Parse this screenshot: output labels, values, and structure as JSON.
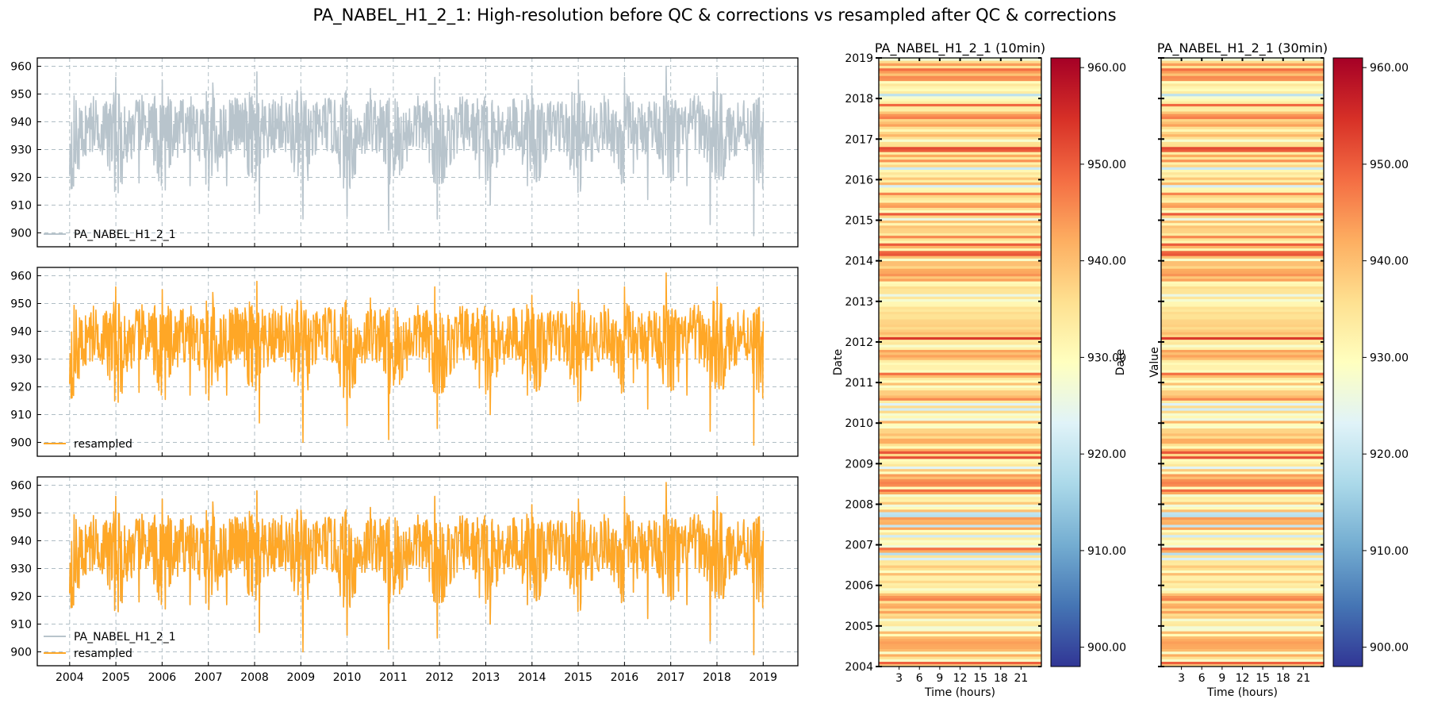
{
  "figure_title": "PA_NABEL_H1_2_1: High-resolution before QC & corrections vs resampled after QC & corrections",
  "colors": {
    "raw": "#b8c4cc",
    "resampled": "#ffa726",
    "grid": "#b0bec5",
    "colormap": [
      "#313695",
      "#4575b4",
      "#74add1",
      "#abd9e9",
      "#e0f3f8",
      "#ffffbf",
      "#fee090",
      "#fdae61",
      "#f46d43",
      "#d73027",
      "#a50026"
    ]
  },
  "chart_data": [
    {
      "type": "line",
      "panel": "raw",
      "x_ticks": [
        "2004",
        "2005",
        "2006",
        "2007",
        "2008",
        "2009",
        "2010",
        "2011",
        "2012",
        "2013",
        "2014",
        "2015",
        "2016",
        "2017",
        "2018",
        "2019"
      ],
      "xlim": [
        2003.3,
        2019.75
      ],
      "ylim": [
        895,
        963
      ],
      "y_ticks": [
        900,
        910,
        920,
        930,
        940,
        950,
        960
      ],
      "grid": true,
      "legend_position": "lower-left",
      "series": [
        {
          "name": "PA_NABEL_H1_2_1",
          "color": "#b8c4cc",
          "x_range": [
            2004.0,
            2019.0
          ],
          "typical_min": 925,
          "typical_max": 947,
          "mean": 936,
          "notable_lows": [
            [
              2004.05,
              916
            ],
            [
              2005.5,
              918
            ],
            [
              2006.6,
              917
            ],
            [
              2007.4,
              917
            ],
            [
              2008.1,
              907
            ],
            [
              2009.05,
              905
            ],
            [
              2010.0,
              906
            ],
            [
              2010.9,
              901
            ],
            [
              2011.95,
              905
            ],
            [
              2013.1,
              910
            ],
            [
              2015.0,
              898
            ],
            [
              2016.5,
              912
            ],
            [
              2017.35,
              917
            ],
            [
              2017.85,
              903
            ],
            [
              2018.8,
              899
            ]
          ],
          "notable_highs": [
            [
              2005.0,
              956
            ],
            [
              2006.0,
              955
            ],
            [
              2007.1,
              954
            ],
            [
              2008.05,
              958
            ],
            [
              2009.0,
              951
            ],
            [
              2010.5,
              952
            ],
            [
              2011.9,
              956
            ],
            [
              2014.0,
              953
            ],
            [
              2015.0,
              955
            ],
            [
              2016.0,
              956
            ],
            [
              2016.9,
              960
            ],
            [
              2018.0,
              956
            ]
          ]
        }
      ]
    },
    {
      "type": "line",
      "panel": "resampled",
      "x_ticks": [
        "2004",
        "2005",
        "2006",
        "2007",
        "2008",
        "2009",
        "2010",
        "2011",
        "2012",
        "2013",
        "2014",
        "2015",
        "2016",
        "2017",
        "2018",
        "2019"
      ],
      "xlim": [
        2003.3,
        2019.75
      ],
      "ylim": [
        895,
        963
      ],
      "y_ticks": [
        900,
        910,
        920,
        930,
        940,
        950,
        960
      ],
      "grid": true,
      "legend_position": "lower-left",
      "series": [
        {
          "name": "resampled",
          "color": "#ffa726",
          "x_range": [
            2004.0,
            2019.0
          ],
          "typical_min": 925,
          "typical_max": 947,
          "mean": 936,
          "notable_lows": [
            [
              2004.05,
              916
            ],
            [
              2005.5,
              918
            ],
            [
              2006.6,
              917
            ],
            [
              2007.4,
              917
            ],
            [
              2008.1,
              907
            ],
            [
              2009.05,
              900
            ],
            [
              2010.0,
              906
            ],
            [
              2010.9,
              901
            ],
            [
              2011.95,
              905
            ],
            [
              2013.1,
              910
            ],
            [
              2015.0,
              898
            ],
            [
              2016.5,
              912
            ],
            [
              2017.35,
              917
            ],
            [
              2017.85,
              904
            ],
            [
              2018.8,
              899
            ]
          ],
          "notable_highs": [
            [
              2005.0,
              956
            ],
            [
              2006.0,
              955
            ],
            [
              2007.1,
              954
            ],
            [
              2008.05,
              958
            ],
            [
              2009.0,
              951
            ],
            [
              2010.5,
              952
            ],
            [
              2011.9,
              956
            ],
            [
              2014.0,
              953
            ],
            [
              2015.0,
              955
            ],
            [
              2016.0,
              956
            ],
            [
              2016.9,
              961
            ],
            [
              2018.0,
              956
            ]
          ]
        }
      ]
    },
    {
      "type": "line",
      "panel": "overlay",
      "x_ticks": [
        "2004",
        "2005",
        "2006",
        "2007",
        "2008",
        "2009",
        "2010",
        "2011",
        "2012",
        "2013",
        "2014",
        "2015",
        "2016",
        "2017",
        "2018",
        "2019"
      ],
      "xlim": [
        2003.3,
        2019.75
      ],
      "ylim": [
        895,
        963
      ],
      "y_ticks": [
        900,
        910,
        920,
        930,
        940,
        950,
        960
      ],
      "grid": true,
      "legend_position": "lower-left",
      "series": [
        {
          "name": "PA_NABEL_H1_2_1",
          "color": "#b8c4cc"
        },
        {
          "name": "resampled",
          "color": "#ffa726"
        }
      ]
    },
    {
      "type": "heatmap",
      "title": "PA_NABEL_H1_2_1 (10min)",
      "xlabel": "Time (hours)",
      "ylabel": "Date",
      "x_ticks": [
        3,
        6,
        9,
        12,
        15,
        18,
        21
      ],
      "xlim": [
        0,
        24
      ],
      "y_ticks": [
        "2004",
        "2005",
        "2006",
        "2007",
        "2008",
        "2009",
        "2010",
        "2011",
        "2012",
        "2013",
        "2014",
        "2015",
        "2016",
        "2017",
        "2018",
        "2019"
      ],
      "ylim": [
        2004,
        2019
      ],
      "colorbar": {
        "label": "Value",
        "min": 898,
        "max": 961,
        "ticks": [
          "900.00",
          "910.00",
          "920.00",
          "930.00",
          "940.00",
          "950.00",
          "960.00"
        ]
      },
      "rows": 240
    },
    {
      "type": "heatmap",
      "title": "PA_NABEL_H1_2_1 (30min)",
      "xlabel": "Time (hours)",
      "ylabel": "Date",
      "x_ticks": [
        3,
        6,
        9,
        12,
        15,
        18,
        21
      ],
      "xlim": [
        0,
        24
      ],
      "y_ticks": [
        "2004",
        "2005",
        "2006",
        "2007",
        "2008",
        "2009",
        "2010",
        "2011",
        "2012",
        "2013",
        "2014",
        "2015",
        "2016",
        "2017",
        "2018",
        "2019"
      ],
      "ylim": [
        2004,
        2019
      ],
      "colorbar": {
        "label": "Value",
        "min": 898,
        "max": 961,
        "ticks": [
          "900.00",
          "910.00",
          "920.00",
          "930.00",
          "940.00",
          "950.00",
          "960.00"
        ]
      },
      "rows": 240
    }
  ]
}
